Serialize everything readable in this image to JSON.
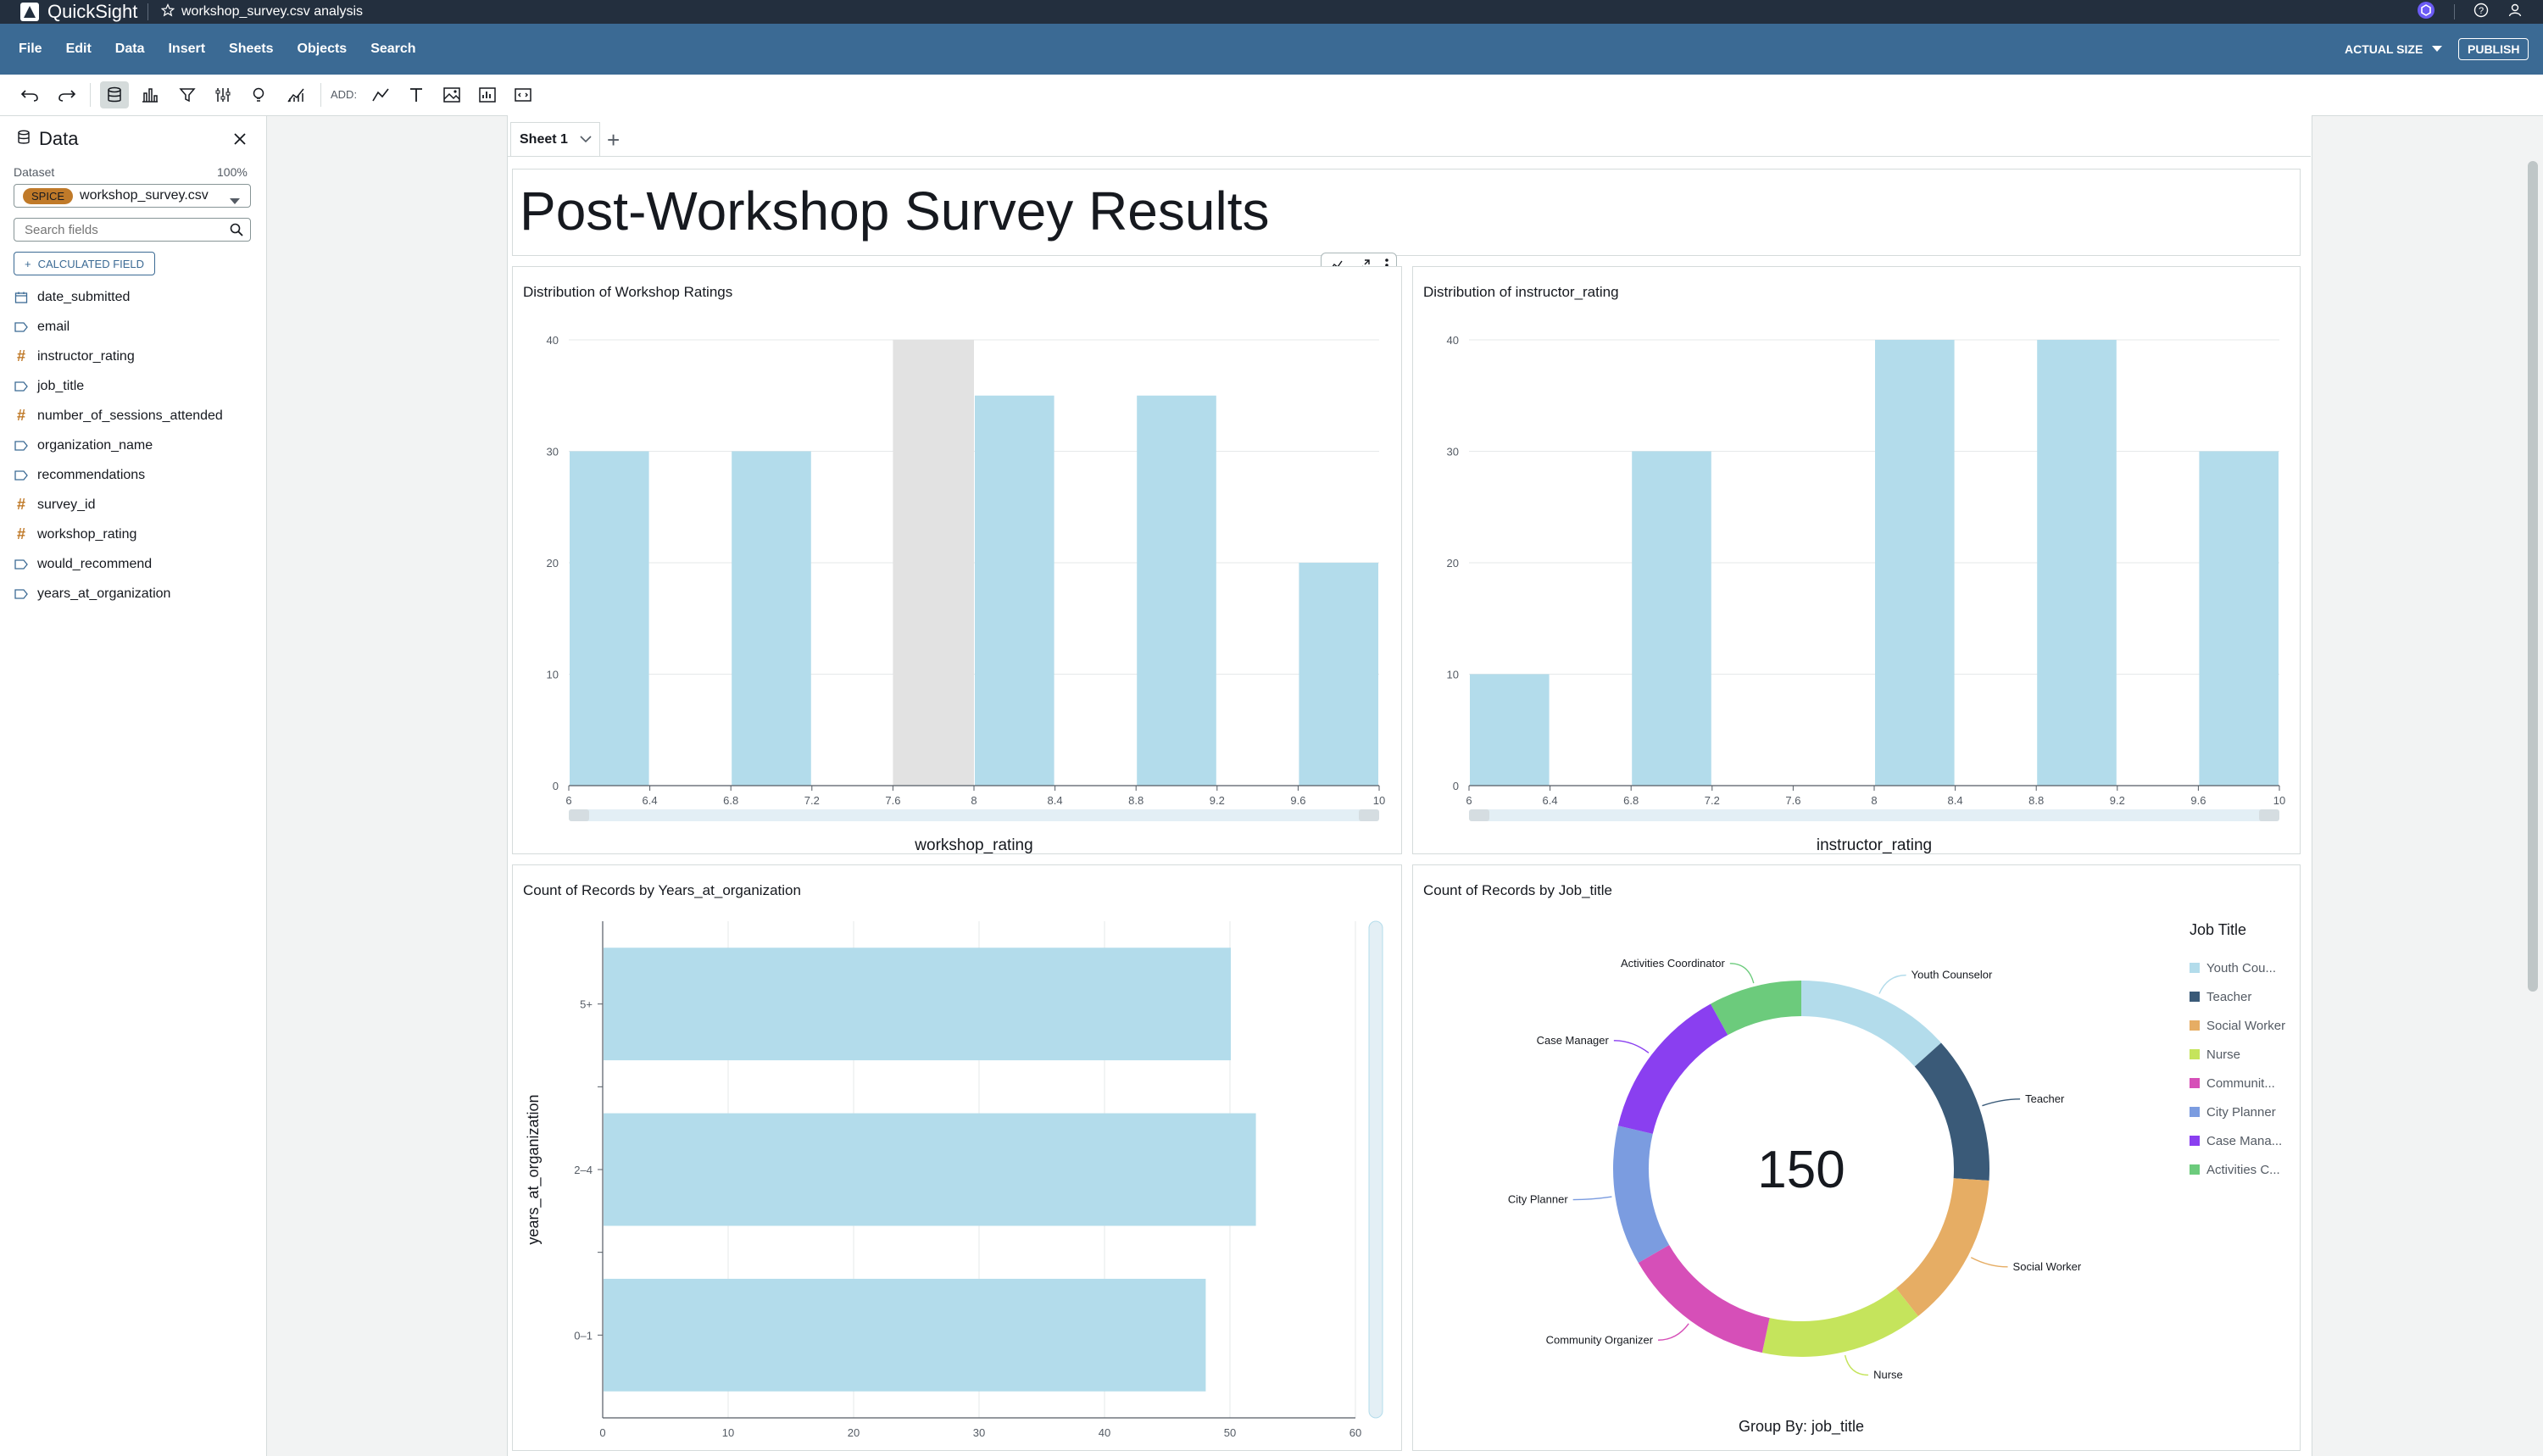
{
  "app": {
    "name": "QuickSight",
    "analysis_title": "workshop_survey.csv analysis"
  },
  "menubar": {
    "items": [
      "File",
      "Edit",
      "Data",
      "Insert",
      "Sheets",
      "Objects",
      "Search"
    ],
    "actual_size": "ACTUAL SIZE",
    "publish": "PUBLISH"
  },
  "toolbar": {
    "add_label": "ADD:"
  },
  "sidebar": {
    "title": "Data",
    "dataset_label": "Dataset",
    "dataset_pct": "100%",
    "spice_badge": "SPICE",
    "dataset_name": "workshop_survey.csv",
    "search_placeholder": "Search fields",
    "calculated_field": "CALCULATED FIELD",
    "fields": [
      {
        "name": "date_submitted",
        "type": "date"
      },
      {
        "name": "email",
        "type": "string"
      },
      {
        "name": "instructor_rating",
        "type": "number"
      },
      {
        "name": "job_title",
        "type": "string"
      },
      {
        "name": "number_of_sessions_attended",
        "type": "number"
      },
      {
        "name": "organization_name",
        "type": "string"
      },
      {
        "name": "recommendations",
        "type": "string"
      },
      {
        "name": "survey_id",
        "type": "number"
      },
      {
        "name": "workshop_rating",
        "type": "number"
      },
      {
        "name": "would_recommend",
        "type": "string"
      },
      {
        "name": "years_at_organization",
        "type": "string"
      }
    ]
  },
  "sheet": {
    "tab": "Sheet 1",
    "title": "Post-Workshop Survey Results"
  },
  "colors": {
    "bar": "#b3dceb",
    "highlight": "#e2e2e2",
    "header": "#232f3e",
    "menubar": "#3b6a94"
  },
  "chart_data": [
    {
      "type": "bar",
      "title": "Distribution of Workshop Ratings",
      "xlabel": "workshop_rating",
      "x_ticks": [
        "6",
        "6.4",
        "6.8",
        "7.2",
        "7.6",
        "8",
        "8.4",
        "8.8",
        "9.2",
        "9.6",
        "10"
      ],
      "y_ticks": [
        0,
        10,
        20,
        30,
        40
      ],
      "ylim": [
        0,
        40
      ],
      "bins": [
        {
          "start": 6.0,
          "end": 6.4,
          "count": 30
        },
        {
          "start": 6.8,
          "end": 7.2,
          "count": 30
        },
        {
          "start": 8.0,
          "end": 8.4,
          "count": 35
        },
        {
          "start": 8.8,
          "end": 9.2,
          "count": 35
        },
        {
          "start": 9.6,
          "end": 10.0,
          "count": 20
        }
      ],
      "highlight_range": [
        7.6,
        8.0
      ]
    },
    {
      "type": "bar",
      "title": "Distribution of instructor_rating",
      "xlabel": "instructor_rating",
      "x_ticks": [
        "6",
        "6.4",
        "6.8",
        "7.2",
        "7.6",
        "8",
        "8.4",
        "8.8",
        "9.2",
        "9.6",
        "10"
      ],
      "y_ticks": [
        0,
        10,
        20,
        30,
        40
      ],
      "ylim": [
        0,
        40
      ],
      "bins": [
        {
          "start": 6.0,
          "end": 6.4,
          "count": 10
        },
        {
          "start": 6.8,
          "end": 7.2,
          "count": 30
        },
        {
          "start": 8.0,
          "end": 8.4,
          "count": 40
        },
        {
          "start": 8.8,
          "end": 9.2,
          "count": 40
        },
        {
          "start": 9.6,
          "end": 10.0,
          "count": 30
        }
      ]
    },
    {
      "type": "bar",
      "orientation": "horizontal",
      "title": "Count of Records by Years_at_organization",
      "ylabel": "years_at_organization",
      "categories": [
        "5+",
        "2-4",
        "0-1"
      ],
      "values": [
        50,
        52,
        48
      ],
      "x_ticks": [
        0,
        10,
        20,
        30,
        40,
        50,
        60
      ],
      "xlim": [
        0,
        60
      ]
    },
    {
      "type": "pie",
      "title": "Count of Records by Job_title",
      "center_value": "150",
      "group_by_label": "Group By: job_title",
      "legend_title": "Job Title",
      "slices": [
        {
          "label": "Youth Counselor",
          "legend": "Youth Cou...",
          "value": 20,
          "color": "#b3dceb"
        },
        {
          "label": "Teacher",
          "legend": "Teacher",
          "value": 19,
          "color": "#3a5a78"
        },
        {
          "label": "Social Worker",
          "legend": "Social Worker",
          "value": 20,
          "color": "#e6ad64"
        },
        {
          "label": "Nurse",
          "legend": "Nurse",
          "value": 21,
          "color": "#c5e45c"
        },
        {
          "label": "Community Organizer",
          "legend": "Communit...",
          "value": 20,
          "color": "#d64fb8"
        },
        {
          "label": "City Planner",
          "legend": "City Planner",
          "value": 18,
          "color": "#7b9ce0"
        },
        {
          "label": "Case Manager",
          "legend": "Case Mana...",
          "value": 20,
          "color": "#8a3ff0"
        },
        {
          "label": "Activities Coordinator",
          "legend": "Activities C...",
          "value": 12,
          "color": "#6ccb7c"
        }
      ]
    }
  ]
}
